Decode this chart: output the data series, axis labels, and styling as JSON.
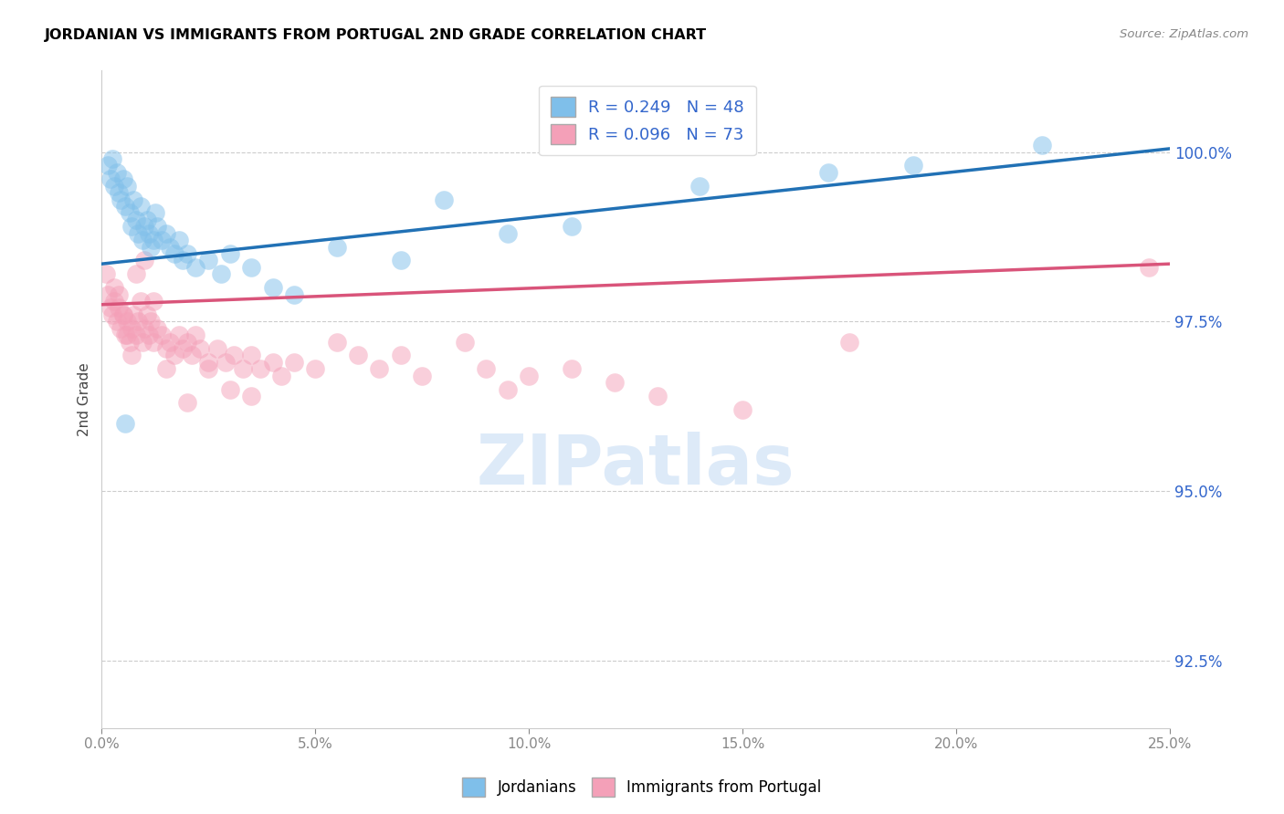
{
  "title": "JORDANIAN VS IMMIGRANTS FROM PORTUGAL 2ND GRADE CORRELATION CHART",
  "source": "Source: ZipAtlas.com",
  "ylabel": "2nd Grade",
  "xlim": [
    0.0,
    25.0
  ],
  "ylim": [
    91.5,
    101.2
  ],
  "yticks": [
    92.5,
    95.0,
    97.5,
    100.0
  ],
  "ytick_labels": [
    "92.5%",
    "95.0%",
    "97.5%",
    "100.0%"
  ],
  "xticks": [
    0.0,
    5.0,
    10.0,
    15.0,
    20.0,
    25.0
  ],
  "blue_R": 0.249,
  "blue_N": 48,
  "pink_R": 0.096,
  "pink_N": 73,
  "blue_color": "#7fbfea",
  "pink_color": "#f4a0b8",
  "blue_line_color": "#2171b5",
  "pink_line_color": "#d9547a",
  "legend_label_blue": "Jordanians",
  "legend_label_pink": "Immigrants from Portugal",
  "blue_line_x": [
    0.0,
    25.0
  ],
  "blue_line_y": [
    98.35,
    100.05
  ],
  "pink_line_x": [
    0.0,
    25.0
  ],
  "pink_line_y": [
    97.75,
    98.35
  ],
  "blue_scatter_x": [
    0.15,
    0.2,
    0.25,
    0.3,
    0.35,
    0.4,
    0.45,
    0.5,
    0.55,
    0.6,
    0.65,
    0.7,
    0.75,
    0.8,
    0.85,
    0.9,
    0.95,
    1.0,
    1.05,
    1.1,
    1.15,
    1.2,
    1.3,
    1.4,
    1.5,
    1.6,
    1.7,
    1.8,
    1.9,
    2.0,
    2.2,
    2.5,
    2.8,
    3.0,
    3.5,
    4.0,
    4.5,
    5.5,
    7.0,
    8.0,
    9.5,
    11.0,
    14.0,
    17.0,
    19.0,
    22.0,
    1.25,
    0.55
  ],
  "blue_scatter_y": [
    99.8,
    99.6,
    99.9,
    99.5,
    99.7,
    99.4,
    99.3,
    99.6,
    99.2,
    99.5,
    99.1,
    98.9,
    99.3,
    99.0,
    98.8,
    99.2,
    98.7,
    98.9,
    99.0,
    98.8,
    98.6,
    98.7,
    98.9,
    98.7,
    98.8,
    98.6,
    98.5,
    98.7,
    98.4,
    98.5,
    98.3,
    98.4,
    98.2,
    98.5,
    98.3,
    98.0,
    97.9,
    98.6,
    98.4,
    99.3,
    98.8,
    98.9,
    99.5,
    99.7,
    99.8,
    100.1,
    99.1,
    96.0
  ],
  "pink_scatter_x": [
    0.1,
    0.15,
    0.2,
    0.25,
    0.3,
    0.35,
    0.4,
    0.45,
    0.5,
    0.55,
    0.6,
    0.65,
    0.7,
    0.75,
    0.8,
    0.85,
    0.9,
    0.95,
    1.0,
    1.05,
    1.1,
    1.15,
    1.2,
    1.3,
    1.4,
    1.5,
    1.6,
    1.7,
    1.8,
    1.9,
    2.0,
    2.1,
    2.2,
    2.3,
    2.5,
    2.7,
    2.9,
    3.1,
    3.3,
    3.5,
    3.7,
    4.0,
    4.2,
    4.5,
    5.0,
    5.5,
    6.0,
    6.5,
    7.0,
    7.5,
    8.5,
    9.0,
    9.5,
    10.0,
    11.0,
    12.0,
    13.0,
    15.0,
    17.5,
    0.3,
    0.4,
    0.5,
    0.6,
    0.7,
    0.8,
    1.0,
    1.2,
    1.5,
    2.0,
    2.5,
    3.0,
    3.5,
    24.5
  ],
  "pink_scatter_y": [
    98.2,
    97.9,
    97.7,
    97.6,
    97.8,
    97.5,
    97.7,
    97.4,
    97.6,
    97.3,
    97.5,
    97.2,
    97.4,
    97.6,
    97.3,
    97.5,
    97.8,
    97.2,
    97.4,
    97.6,
    97.3,
    97.5,
    97.2,
    97.4,
    97.3,
    97.1,
    97.2,
    97.0,
    97.3,
    97.1,
    97.2,
    97.0,
    97.3,
    97.1,
    96.9,
    97.1,
    96.9,
    97.0,
    96.8,
    97.0,
    96.8,
    96.9,
    96.7,
    96.9,
    96.8,
    97.2,
    97.0,
    96.8,
    97.0,
    96.7,
    97.2,
    96.8,
    96.5,
    96.7,
    96.8,
    96.6,
    96.4,
    96.2,
    97.2,
    98.0,
    97.9,
    97.6,
    97.3,
    97.0,
    98.2,
    98.4,
    97.8,
    96.8,
    96.3,
    96.8,
    96.5,
    96.4,
    98.3
  ]
}
